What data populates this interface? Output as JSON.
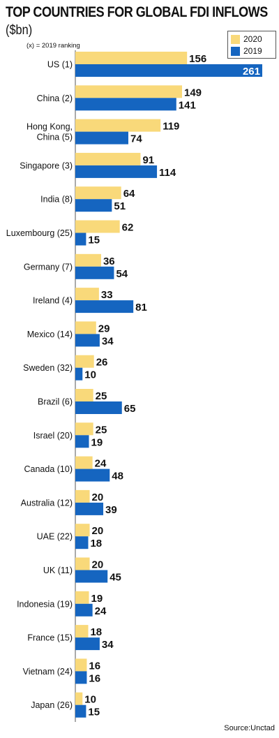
{
  "colors": {
    "series_2020": "#f9d97a",
    "series_2019": "#1565c0",
    "axis": "#555555"
  },
  "chart_data": {
    "type": "bar",
    "orientation": "horizontal",
    "title": "TOP COUNTRIES FOR GLOBAL FDI INFLOWS",
    "subtitle": "($bn)",
    "note": "(x) = 2019 ranking",
    "source": "Source:Unctad",
    "legend_position": "top-right",
    "categories": [
      [
        "US (1)"
      ],
      [
        "China (2)"
      ],
      [
        "Hong Kong,",
        "China (5)"
      ],
      [
        "Singapore (3)"
      ],
      [
        "India (8)"
      ],
      [
        "Luxembourg (25)"
      ],
      [
        "Germany (7)"
      ],
      [
        "Ireland (4)"
      ],
      [
        "Mexico (14)"
      ],
      [
        "Sweden (32)"
      ],
      [
        "Brazil (6)"
      ],
      [
        "Israel (20)"
      ],
      [
        "Canada (10)"
      ],
      [
        "Australia (12)"
      ],
      [
        "UAE (22)"
      ],
      [
        "UK (11)"
      ],
      [
        "Indonesia (19)"
      ],
      [
        "France (15)"
      ],
      [
        "Vietnam (24)"
      ],
      [
        "Japan (26)"
      ]
    ],
    "series": [
      {
        "name": "2020",
        "values": [
          156,
          149,
          119,
          91,
          64,
          62,
          36,
          33,
          29,
          26,
          25,
          25,
          24,
          20,
          20,
          20,
          19,
          18,
          16,
          10
        ]
      },
      {
        "name": "2019",
        "values": [
          261,
          141,
          74,
          114,
          51,
          15,
          54,
          81,
          34,
          10,
          65,
          19,
          48,
          39,
          18,
          45,
          24,
          34,
          16,
          15
        ]
      }
    ],
    "xlim": [
      0,
      261
    ]
  }
}
